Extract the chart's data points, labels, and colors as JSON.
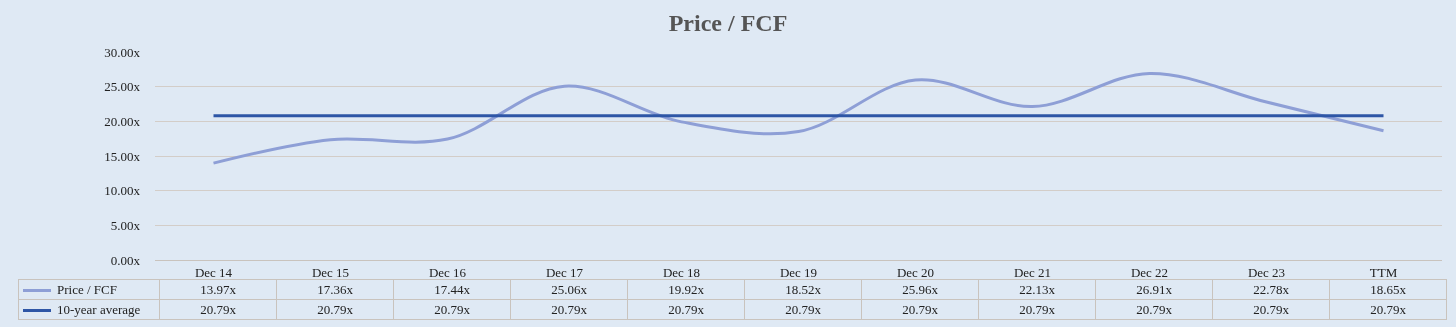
{
  "chart_data": {
    "type": "line",
    "title": "Price / FCF",
    "categories": [
      "Dec 14",
      "Dec 15",
      "Dec 16",
      "Dec 17",
      "Dec 18",
      "Dec 19",
      "Dec 20",
      "Dec 21",
      "Dec 22",
      "Dec 23",
      "TTM"
    ],
    "series": [
      {
        "name": "Price / FCF",
        "color": "#8e9fd6",
        "values": [
          13.97,
          17.36,
          17.44,
          25.06,
          19.92,
          18.52,
          25.96,
          22.13,
          26.91,
          22.78,
          18.65
        ],
        "value_labels": [
          "13.97x",
          "17.36x",
          "17.44x",
          "25.06x",
          "19.92x",
          "18.52x",
          "25.96x",
          "22.13x",
          "26.91x",
          "22.78x",
          "18.65x"
        ]
      },
      {
        "name": "10-year average",
        "color": "#2e56a6",
        "values": [
          20.79,
          20.79,
          20.79,
          20.79,
          20.79,
          20.79,
          20.79,
          20.79,
          20.79,
          20.79,
          20.79
        ],
        "value_labels": [
          "20.79x",
          "20.79x",
          "20.79x",
          "20.79x",
          "20.79x",
          "20.79x",
          "20.79x",
          "20.79x",
          "20.79x",
          "20.79x",
          "20.79x"
        ]
      }
    ],
    "ylim": [
      0,
      30
    ],
    "yticks": [
      {
        "value": 0,
        "label": "0.00x"
      },
      {
        "value": 5,
        "label": "5.00x"
      },
      {
        "value": 10,
        "label": "10.00x"
      },
      {
        "value": 15,
        "label": "15.00x"
      },
      {
        "value": 20,
        "label": "20.00x"
      },
      {
        "value": 25,
        "label": "25.00x"
      },
      {
        "value": 30,
        "label": "30.00x"
      }
    ],
    "grid": "y",
    "legend": "bottom left"
  }
}
